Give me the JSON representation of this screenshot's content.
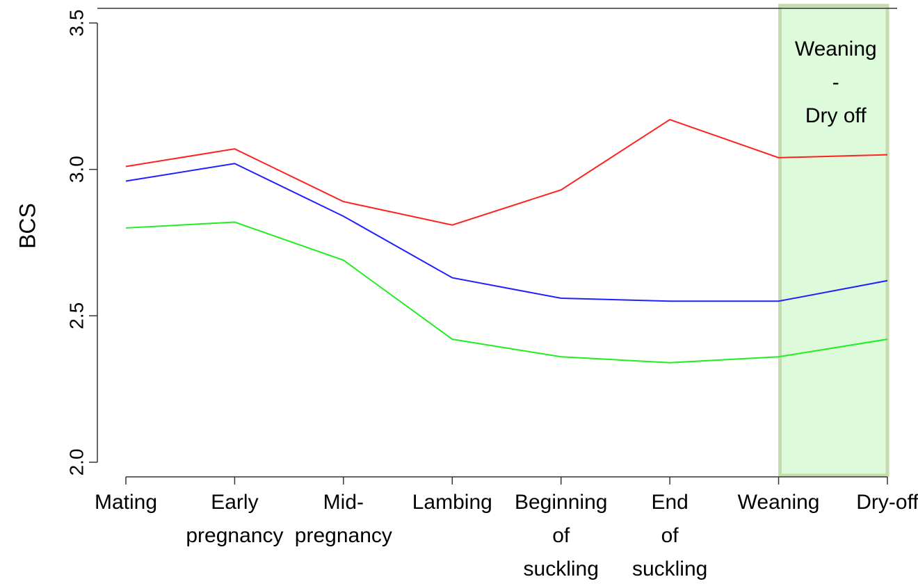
{
  "chart_data": {
    "type": "line",
    "ylabel": "BCS",
    "categories": [
      [
        "Mating"
      ],
      [
        "Early",
        "pregnancy"
      ],
      [
        "Mid-",
        "pregnancy"
      ],
      [
        "Lambing"
      ],
      [
        "Beginning",
        "of",
        "suckling"
      ],
      [
        "End",
        "of",
        "suckling"
      ],
      [
        "Weaning"
      ],
      [
        "Dry-off"
      ]
    ],
    "series": [
      {
        "color": "#ff2020",
        "values": [
          3.01,
          3.07,
          2.89,
          2.81,
          2.93,
          3.17,
          3.04,
          3.05
        ]
      },
      {
        "color": "#2020ff",
        "values": [
          2.96,
          3.02,
          2.84,
          2.63,
          2.56,
          2.55,
          2.55,
          2.62
        ]
      },
      {
        "color": "#20ee20",
        "values": [
          2.8,
          2.82,
          2.69,
          2.42,
          2.36,
          2.34,
          2.36,
          2.42
        ]
      }
    ],
    "ylim": [
      1.95,
      3.55
    ],
    "yticks": [
      {
        "value": 2,
        "label": "2.0"
      },
      2.5,
      {
        "value": 3,
        "label": "3.0"
      },
      3.5
    ],
    "annotation": [
      "Weaning",
      "-",
      "Dry off"
    ]
  }
}
